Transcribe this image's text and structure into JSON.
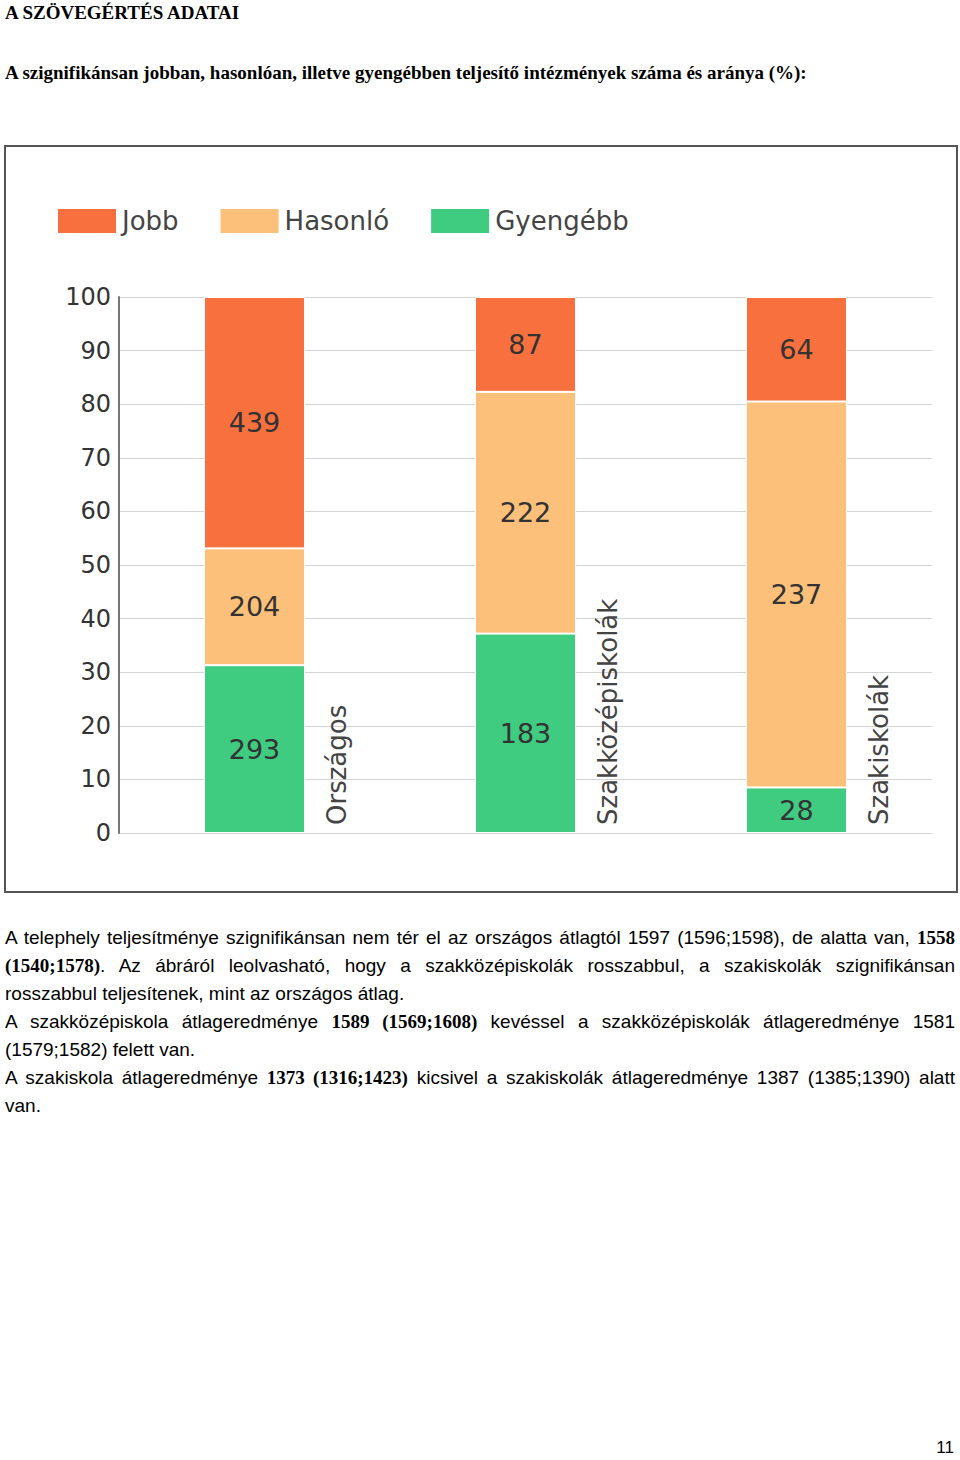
{
  "heading": "A SZÖVEGÉRTÉS ADATAI",
  "subheading": "A szignifikánsan jobban, hasonlóan, illetve gyengébben teljesítő intézmények száma és aránya (%):",
  "chart_data": {
    "type": "bar",
    "stacked": true,
    "grid": true,
    "legend": "top-left",
    "categories": [
      "Országos",
      "Szakközépiskolák",
      "Szakiskolák"
    ],
    "series": [
      {
        "name": "Jobb",
        "color": "#f8703e",
        "values": [
          46.9,
          17.7,
          19.5
        ],
        "counts": [
          439,
          87,
          64
        ]
      },
      {
        "name": "Hasonló",
        "color": "#fcc07a",
        "values": [
          21.8,
          45.1,
          72.0
        ],
        "counts": [
          204,
          222,
          237
        ]
      },
      {
        "name": "Gyengébb",
        "color": "#3fcb80",
        "values": [
          31.3,
          37.2,
          8.5
        ],
        "counts": [
          293,
          183,
          28
        ]
      }
    ],
    "ylim": [
      0,
      100
    ],
    "yticks": [
      0,
      10,
      20,
      30,
      40,
      50,
      60,
      70,
      80,
      90,
      100
    ]
  },
  "paragraphs": [
    [
      {
        "text": "A telephely teljesítménye szignifikánsan nem tér el az országos átlagtól 1597 (1596;1598), de alatta van, ",
        "bold": false
      },
      {
        "text": "1558 (1540;1578)",
        "bold": true
      },
      {
        "text": ". Az ábráról leolvasható, hogy a szakközépiskolák rosszabbul, a szakiskolák szignifikánsan rosszabbul teljesítenek, mint az országos átlag.",
        "bold": false
      }
    ],
    [
      {
        "text": " A szakközépiskola átlageredménye ",
        "bold": false
      },
      {
        "text": "1589 (1569;1608)",
        "bold": true
      },
      {
        "text": " kevéssel a szakközépiskolák átlageredménye 1581 (1579;1582) felett van.",
        "bold": false
      }
    ],
    [
      {
        "text": "A szakiskola átlageredménye ",
        "bold": false
      },
      {
        "text": "1373 (1316;1423)",
        "bold": true
      },
      {
        "text": " kicsivel a szakiskolák átlageredménye 1387 (1385;1390) alatt van.",
        "bold": false
      }
    ]
  ],
  "page_number": "11"
}
